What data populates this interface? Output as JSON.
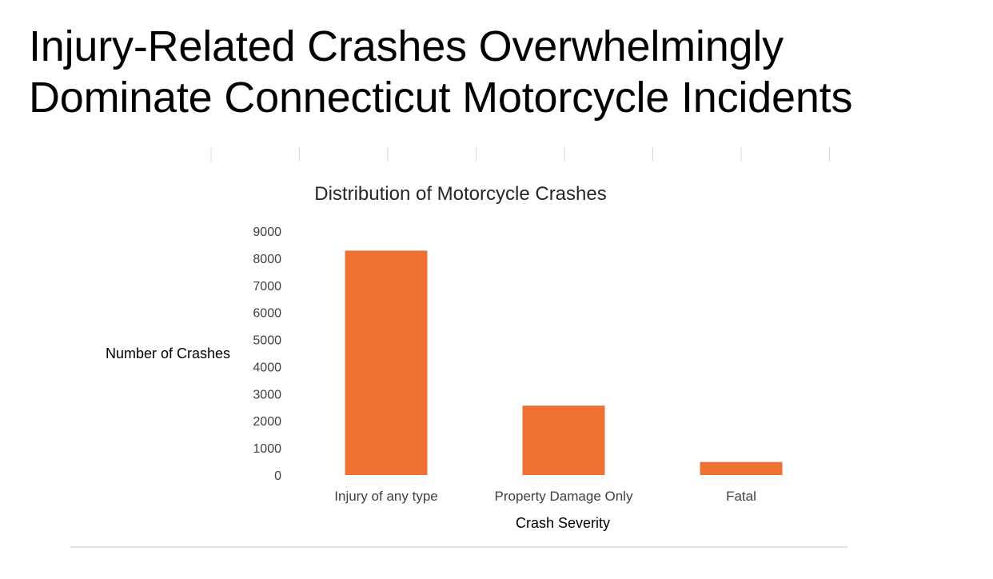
{
  "slide": {
    "title_line1": "Injury-Related Crashes Overwhelmingly",
    "title_line2": "Dominate Connecticut Motorcycle Incidents"
  },
  "chart_data": {
    "type": "bar",
    "title": "Distribution of Motorcycle Crashes",
    "xlabel": "Crash Severity",
    "ylabel": "Number of Crashes",
    "categories": [
      "Injury of any type",
      "Property Damage Only",
      "Fatal"
    ],
    "values": [
      8280,
      2560,
      480
    ],
    "ylim": [
      0,
      9000
    ],
    "yticks": [
      0,
      1000,
      2000,
      3000,
      4000,
      5000,
      6000,
      7000,
      8000,
      9000
    ],
    "grid": false,
    "legend": "none",
    "bar_color": "#ED7131"
  }
}
